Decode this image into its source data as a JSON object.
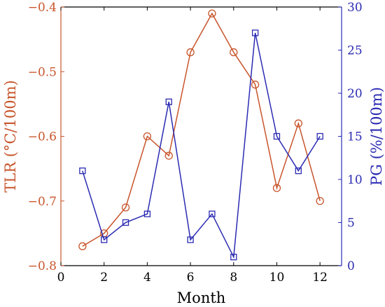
{
  "chart_data": {
    "type": "line",
    "xlabel": "Month",
    "ylabel_left": "TLR (°C/100m)",
    "ylabel_right": "PG (%/100m)",
    "xlim": [
      0,
      13
    ],
    "ylim_left": [
      -0.8,
      -0.4
    ],
    "ylim_right": [
      0,
      30
    ],
    "xticks": [
      0,
      2,
      4,
      6,
      8,
      10,
      12
    ],
    "xtick_labels": [
      "0",
      "2",
      "4",
      "6",
      "8",
      "10",
      "12"
    ],
    "yticks_left": [
      -0.8,
      -0.7,
      -0.6,
      -0.5,
      -0.4
    ],
    "ytick_labels_left": [
      "−0.8",
      "−0.7",
      "−0.6",
      "−0.5",
      "−0.4"
    ],
    "yticks_right": [
      0,
      5,
      10,
      15,
      20,
      25,
      30
    ],
    "ytick_labels_right": [
      "0",
      "5",
      "10",
      "15",
      "20",
      "25",
      "30"
    ],
    "grid": false,
    "legend": "none",
    "colors": {
      "left": "#c8552b",
      "right": "#2b2bb3",
      "axis": "#000000"
    },
    "series": [
      {
        "axis": "left",
        "marker": "circle",
        "x": [
          1,
          2,
          3,
          4,
          5,
          6,
          7,
          8,
          9,
          10,
          11,
          12
        ],
        "values": [
          -0.77,
          -0.75,
          -0.71,
          -0.6,
          -0.63,
          -0.47,
          -0.41,
          -0.47,
          -0.52,
          -0.68,
          -0.58,
          -0.7
        ]
      },
      {
        "axis": "right",
        "marker": "square",
        "x": [
          1,
          2,
          3,
          4,
          5,
          6,
          7,
          8,
          9,
          10,
          11,
          12
        ],
        "values": [
          11,
          3,
          5,
          6,
          19,
          3,
          6,
          1,
          27,
          15,
          11,
          15
        ]
      }
    ]
  }
}
